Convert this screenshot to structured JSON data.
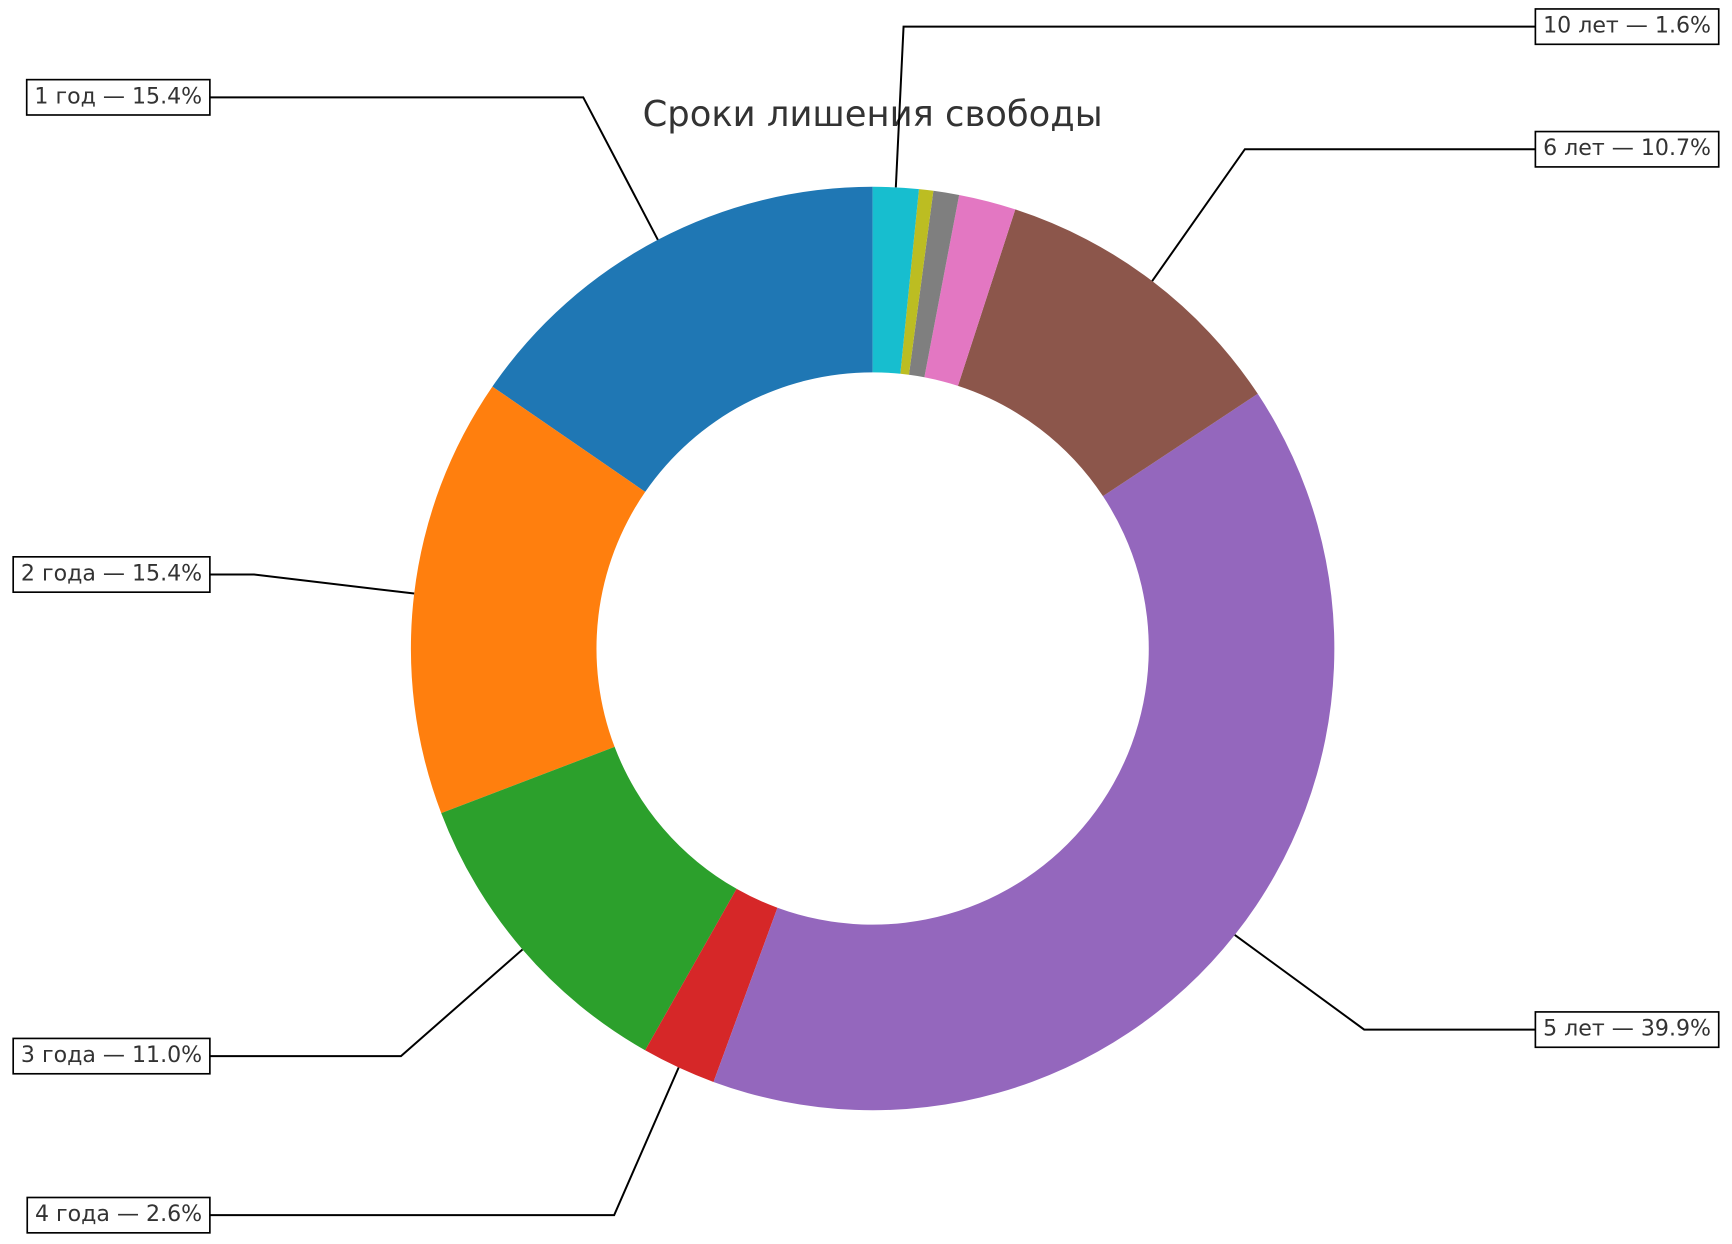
{
  "chart_data": {
    "type": "donut",
    "title": "Сроки лишения свободы",
    "categories": [
      "1 год — 15.4%",
      "2 года — 15.4%",
      "3 года — 11.0%",
      "4 года — 2.6%",
      "5 лет — 39.9%",
      "6 лет — 10.7%",
      null,
      null,
      null,
      "10 лет — 1.6%"
    ],
    "values": [
      15.4,
      15.4,
      11.0,
      2.6,
      39.9,
      10.7,
      2.0,
      0.9,
      0.5,
      1.6
    ],
    "colors": [
      "#1f77b4",
      "#ff7f0e",
      "#2ca02c",
      "#d62728",
      "#9467bd",
      "#8c564b",
      "#e377c2",
      "#7f7f7f",
      "#bcbd22",
      "#17becf"
    ]
  }
}
